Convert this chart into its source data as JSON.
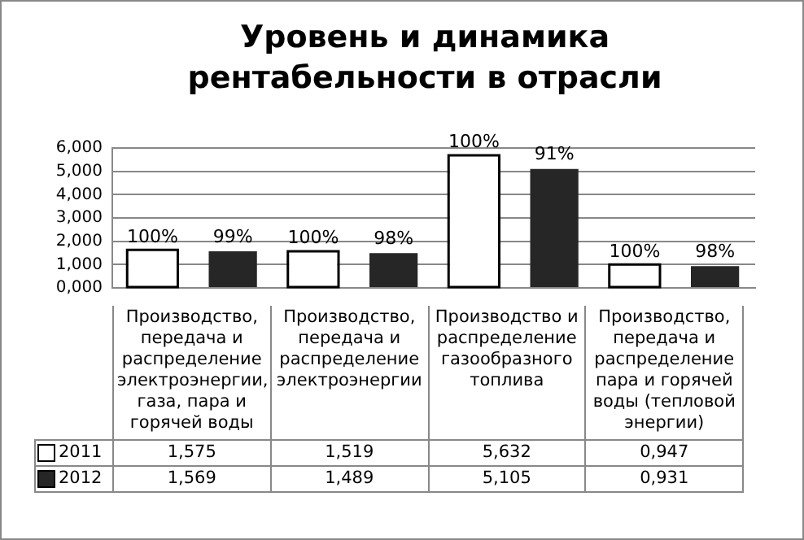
{
  "chart_data": {
    "type": "bar",
    "title": "Уровень и динамика рентабельности в отрасли",
    "categories": [
      "Производство, передача и распределение электроэнергии, газа, пара и горячей воды",
      "Производство, передача и распределение электроэнергии",
      "Производство и распределение газообразного топлива",
      "Производство, передача и распределение пара и горячей воды (тепловой энергии)"
    ],
    "series": [
      {
        "name": "2011",
        "color": "#ffffff",
        "values": [
          1.575,
          1.519,
          5.632,
          0.947
        ],
        "value_labels": [
          "1,575",
          "1,519",
          "5,632",
          "0,947"
        ]
      },
      {
        "name": "2012",
        "color": "#262626",
        "values": [
          1.569,
          1.489,
          5.105,
          0.931
        ],
        "value_labels": [
          "1,569",
          "1,489",
          "5,105",
          "0,931"
        ]
      }
    ],
    "annotations": [
      "100%",
      "100%",
      "100%",
      "100%",
      "99%",
      "98%",
      "91%",
      "98%"
    ],
    "ylim": [
      0,
      6
    ],
    "yticks": [
      {
        "value": 0,
        "label": "0,000"
      },
      {
        "value": 1,
        "label": "1,000"
      },
      {
        "value": 2,
        "label": "2,000"
      },
      {
        "value": 3,
        "label": "3,000"
      },
      {
        "value": 4,
        "label": "4,000"
      },
      {
        "value": 5,
        "label": "5,000"
      },
      {
        "value": 6,
        "label": "6,000"
      }
    ],
    "grid": "y",
    "legend": "bottom"
  }
}
